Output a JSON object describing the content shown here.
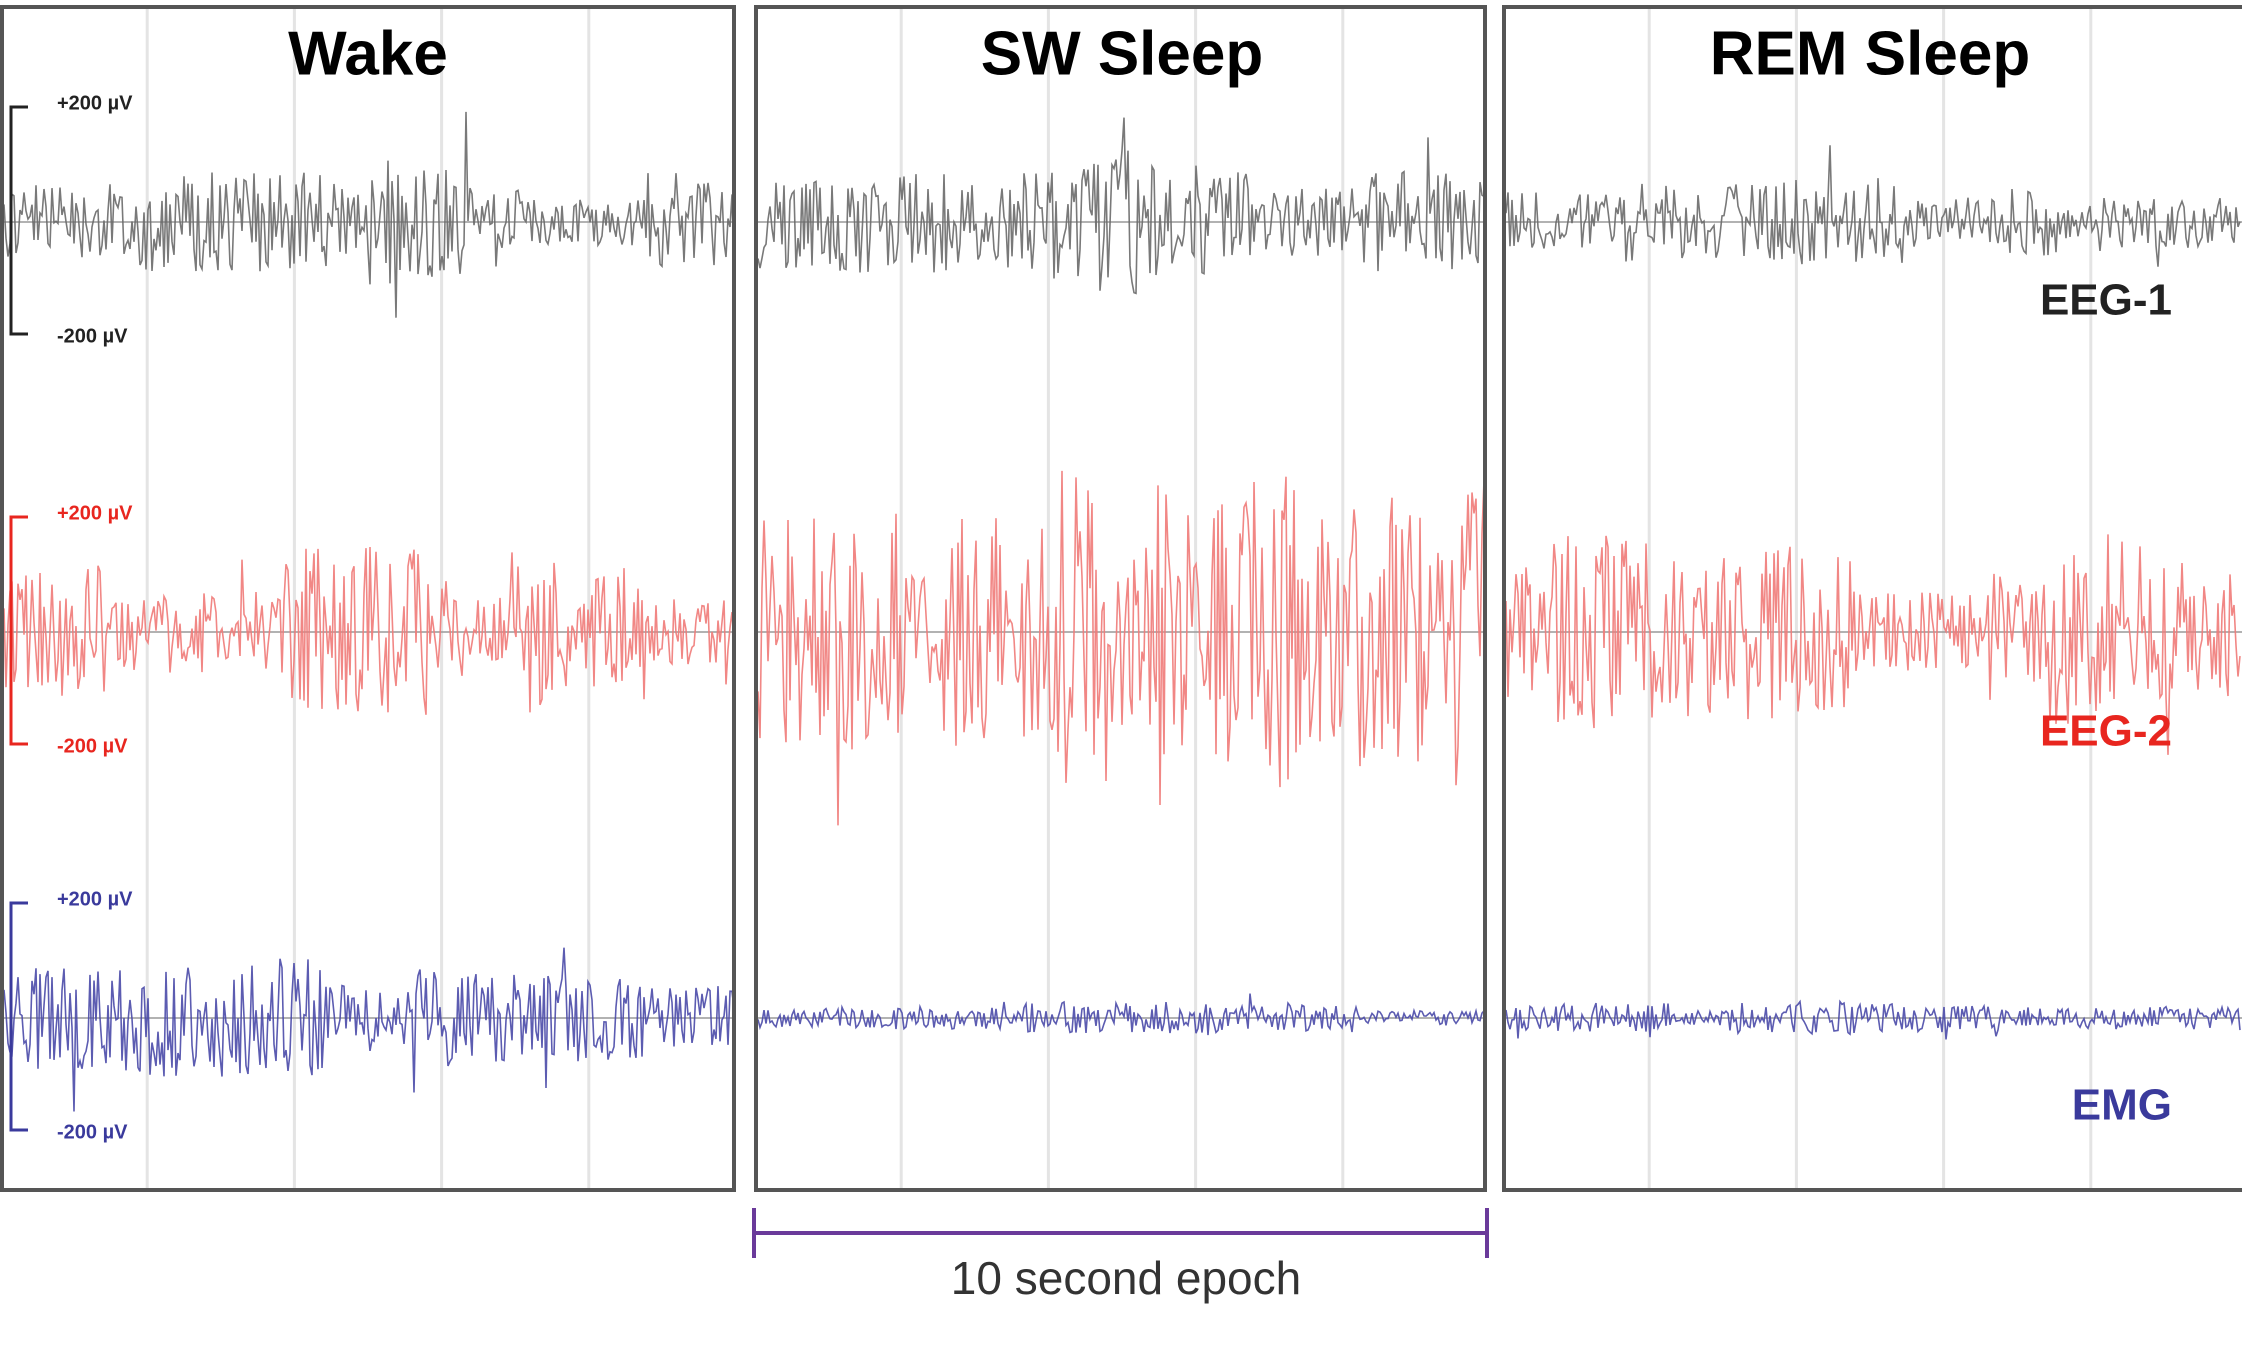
{
  "panels": [
    {
      "title": "Wake"
    },
    {
      "title": "SW Sleep"
    },
    {
      "title": "REM Sleep"
    }
  ],
  "channels": [
    {
      "label": "EEG-1",
      "scale_top": "+200 µV",
      "scale_bottom": "-200 µV",
      "color": "#222222",
      "trace_color": "#6a6a6a"
    },
    {
      "label": "EEG-2",
      "scale_top": "+200 µV",
      "scale_bottom": "-200 µV",
      "color": "#e8261f",
      "trace_color": "#f07a78"
    },
    {
      "label": "EMG",
      "scale_top": "+200 µV",
      "scale_bottom": "-200 µV",
      "color": "#3a3a9c",
      "trace_color": "#4a4aa8"
    }
  ],
  "epoch_label": "10 second epoch"
}
